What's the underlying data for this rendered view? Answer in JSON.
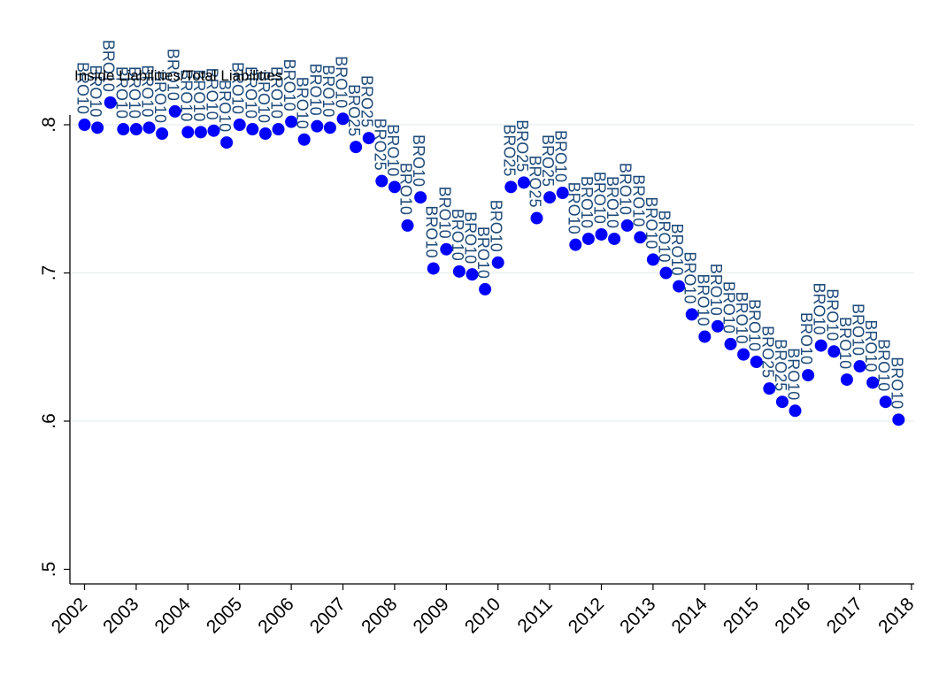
{
  "chart_data": {
    "type": "scatter",
    "title": "Inside Liabilities/Total Liabilities",
    "xlabel": "",
    "ylabel": "",
    "xlim": [
      2001.85,
      2018.05
    ],
    "ylim": [
      0.5,
      0.8
    ],
    "x_ticks": [
      2002,
      2003,
      2004,
      2005,
      2006,
      2007,
      2008,
      2009,
      2010,
      2011,
      2012,
      2013,
      2014,
      2015,
      2016,
      2017,
      2018
    ],
    "x_tick_labels": [
      "2002",
      "2003",
      "2004",
      "2005",
      "2006",
      "2007",
      "2008",
      "2009",
      "2010",
      "2011",
      "2012",
      "2013",
      "2014",
      "2015",
      "2016",
      "2017",
      "2018"
    ],
    "y_ticks": [
      0.5,
      0.6,
      0.7,
      0.8
    ],
    "y_tick_labels": [
      ".5",
      ".6",
      ".7",
      ".8"
    ],
    "grid": true,
    "marker_color": "#0000ff",
    "label_color": "#1e4a7a",
    "points": [
      {
        "x": 2002.0,
        "y": 0.8,
        "label": "BRO10"
      },
      {
        "x": 2002.25,
        "y": 0.798,
        "label": "BRO10"
      },
      {
        "x": 2002.5,
        "y": 0.815,
        "label": "BRO10"
      },
      {
        "x": 2002.75,
        "y": 0.797,
        "label": "BRO10"
      },
      {
        "x": 2003.0,
        "y": 0.797,
        "label": "BRO10"
      },
      {
        "x": 2003.25,
        "y": 0.798,
        "label": "BRO10"
      },
      {
        "x": 2003.5,
        "y": 0.794,
        "label": "BRO10"
      },
      {
        "x": 2003.75,
        "y": 0.809,
        "label": "BRO10"
      },
      {
        "x": 2004.0,
        "y": 0.795,
        "label": "BRO10"
      },
      {
        "x": 2004.25,
        "y": 0.795,
        "label": "BRO10"
      },
      {
        "x": 2004.5,
        "y": 0.796,
        "label": "BRO10"
      },
      {
        "x": 2004.75,
        "y": 0.788,
        "label": "BRO10"
      },
      {
        "x": 2005.0,
        "y": 0.8,
        "label": "BRO10"
      },
      {
        "x": 2005.25,
        "y": 0.797,
        "label": "BRO10"
      },
      {
        "x": 2005.5,
        "y": 0.794,
        "label": "BRO10"
      },
      {
        "x": 2005.75,
        "y": 0.797,
        "label": "BRO10"
      },
      {
        "x": 2006.0,
        "y": 0.802,
        "label": "BRO10"
      },
      {
        "x": 2006.25,
        "y": 0.79,
        "label": "BRO10"
      },
      {
        "x": 2006.5,
        "y": 0.799,
        "label": "BRO10"
      },
      {
        "x": 2006.75,
        "y": 0.798,
        "label": "BRO10"
      },
      {
        "x": 2007.0,
        "y": 0.804,
        "label": "BRO10"
      },
      {
        "x": 2007.25,
        "y": 0.785,
        "label": "BRO25"
      },
      {
        "x": 2007.5,
        "y": 0.791,
        "label": "BRO25"
      },
      {
        "x": 2007.75,
        "y": 0.762,
        "label": "BRO25"
      },
      {
        "x": 2008.0,
        "y": 0.758,
        "label": "BRO10"
      },
      {
        "x": 2008.25,
        "y": 0.732,
        "label": "BRO10"
      },
      {
        "x": 2008.5,
        "y": 0.751,
        "label": "BRO10"
      },
      {
        "x": 2008.75,
        "y": 0.703,
        "label": "BRO10"
      },
      {
        "x": 2009.0,
        "y": 0.716,
        "label": "BRO10"
      },
      {
        "x": 2009.25,
        "y": 0.701,
        "label": "BRO10"
      },
      {
        "x": 2009.5,
        "y": 0.699,
        "label": "BRO10"
      },
      {
        "x": 2009.75,
        "y": 0.689,
        "label": "BRO10"
      },
      {
        "x": 2010.0,
        "y": 0.707,
        "label": "BRO10"
      },
      {
        "x": 2010.25,
        "y": 0.758,
        "label": "BRO25"
      },
      {
        "x": 2010.5,
        "y": 0.761,
        "label": "BRO25"
      },
      {
        "x": 2010.75,
        "y": 0.737,
        "label": "BRO25"
      },
      {
        "x": 2011.0,
        "y": 0.751,
        "label": "BRO25"
      },
      {
        "x": 2011.25,
        "y": 0.754,
        "label": "BRO10"
      },
      {
        "x": 2011.5,
        "y": 0.719,
        "label": "BRO10"
      },
      {
        "x": 2011.75,
        "y": 0.723,
        "label": "BRO10"
      },
      {
        "x": 2012.0,
        "y": 0.726,
        "label": "BRO10"
      },
      {
        "x": 2012.25,
        "y": 0.723,
        "label": "BRO10"
      },
      {
        "x": 2012.5,
        "y": 0.732,
        "label": "BRO10"
      },
      {
        "x": 2012.75,
        "y": 0.724,
        "label": "BRO10"
      },
      {
        "x": 2013.0,
        "y": 0.709,
        "label": "BRO10"
      },
      {
        "x": 2013.25,
        "y": 0.7,
        "label": "BRO10"
      },
      {
        "x": 2013.5,
        "y": 0.691,
        "label": "BRO10"
      },
      {
        "x": 2013.75,
        "y": 0.672,
        "label": "BRO10"
      },
      {
        "x": 2014.0,
        "y": 0.657,
        "label": "BRO10"
      },
      {
        "x": 2014.25,
        "y": 0.664,
        "label": "BRO10"
      },
      {
        "x": 2014.5,
        "y": 0.652,
        "label": "BRO10"
      },
      {
        "x": 2014.75,
        "y": 0.645,
        "label": "BRO10"
      },
      {
        "x": 2015.0,
        "y": 0.64,
        "label": "BRO10"
      },
      {
        "x": 2015.25,
        "y": 0.622,
        "label": "BRO25"
      },
      {
        "x": 2015.5,
        "y": 0.613,
        "label": "BRO25"
      },
      {
        "x": 2015.75,
        "y": 0.607,
        "label": "BRO10"
      },
      {
        "x": 2016.0,
        "y": 0.631,
        "label": "BRO10"
      },
      {
        "x": 2016.25,
        "y": 0.651,
        "label": "BRO10"
      },
      {
        "x": 2016.5,
        "y": 0.647,
        "label": "BRO10"
      },
      {
        "x": 2016.75,
        "y": 0.628,
        "label": "BRO10"
      },
      {
        "x": 2017.0,
        "y": 0.637,
        "label": "BRO10"
      },
      {
        "x": 2017.25,
        "y": 0.626,
        "label": "BRO10"
      },
      {
        "x": 2017.5,
        "y": 0.613,
        "label": "BRO10"
      },
      {
        "x": 2017.75,
        "y": 0.601,
        "label": "BRO10"
      }
    ]
  }
}
